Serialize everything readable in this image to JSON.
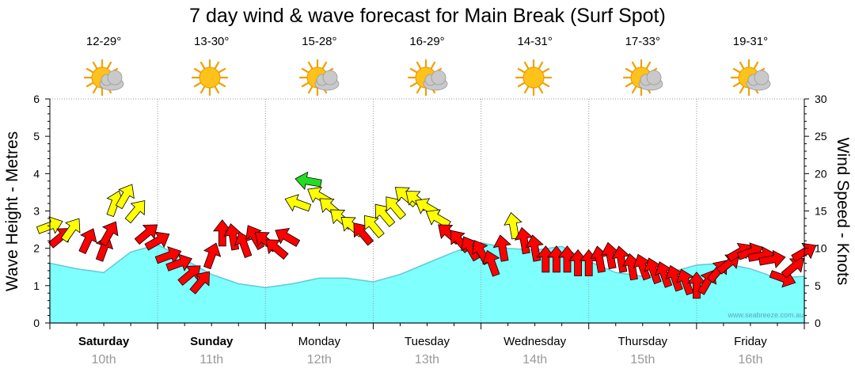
{
  "title": "7 day wind & wave forecast for Main Break (Surf Spot)",
  "credit": "www.seabreeze.com.au",
  "days": [
    {
      "name": "Saturday",
      "date": "10th",
      "temp": "12-29°",
      "icon": "partly-cloudy-icon",
      "bold": true
    },
    {
      "name": "Sunday",
      "date": "11th",
      "temp": "13-30°",
      "icon": "sunny-icon",
      "bold": true
    },
    {
      "name": "Monday",
      "date": "12th",
      "temp": "15-28°",
      "icon": "partly-cloudy-icon",
      "bold": false
    },
    {
      "name": "Tuesday",
      "date": "13th",
      "temp": "16-29°",
      "icon": "partly-cloudy-icon",
      "bold": false
    },
    {
      "name": "Wednesday",
      "date": "14th",
      "temp": "14-31°",
      "icon": "sunny-icon",
      "bold": false
    },
    {
      "name": "Thursday",
      "date": "15th",
      "temp": "17-33°",
      "icon": "partly-cloudy-icon",
      "bold": false
    },
    {
      "name": "Friday",
      "date": "16th",
      "temp": "19-31°",
      "icon": "partly-cloudy-icon",
      "bold": false
    }
  ],
  "colors": {
    "wave_fill": "#80ffff",
    "wave_stroke": "#5fc9d6",
    "wind_strong": "#ff0000",
    "wind_moderate": "#ffff00",
    "wind_peak": "#22dd22",
    "arrow_outline": "#000000",
    "grid": "#999999"
  },
  "chart_data": {
    "type": "area",
    "title": "7 day wind & wave forecast for Main Break (Surf Spot)",
    "ylabel_left": "Wave Height - Metres",
    "ylabel_right": "Wind Speed - Knots",
    "ylim_left": [
      0,
      6
    ],
    "ylim_right": [
      0,
      30
    ],
    "yticks_left": [
      "0",
      "1",
      "2",
      "3",
      "4",
      "5",
      "6"
    ],
    "yticks_right": [
      "0",
      "5",
      "10",
      "15",
      "20",
      "25",
      "30"
    ],
    "grid": "dotted-vertical",
    "x_days": [
      "Saturday 10th",
      "Sunday 11th",
      "Monday 12th",
      "Tuesday 13th",
      "Wednesday 14th",
      "Thursday 15th",
      "Friday 16th"
    ],
    "wave_series": {
      "name": "Wave Height",
      "x": [
        0,
        0.25,
        0.5,
        0.75,
        1,
        1.25,
        1.5,
        1.75,
        2,
        2.25,
        2.5,
        2.75,
        3,
        3.25,
        3.5,
        3.75,
        4,
        4.25,
        4.5,
        4.75,
        5,
        5.25,
        5.5,
        5.75,
        6,
        6.25,
        6.5,
        6.75,
        7
      ],
      "y": [
        1.6,
        1.45,
        1.35,
        1.9,
        2.1,
        1.7,
        1.3,
        1.05,
        0.95,
        1.05,
        1.2,
        1.2,
        1.1,
        1.3,
        1.6,
        1.9,
        2.15,
        2.0,
        1.95,
        2.05,
        1.65,
        1.35,
        1.25,
        1.35,
        1.55,
        1.6,
        1.45,
        1.2,
        1.25
      ]
    },
    "wind_series": {
      "name": "Wind Speed",
      "x": [
        0,
        0.1,
        0.2,
        0.35,
        0.5,
        0.55,
        0.6,
        0.7,
        0.8,
        0.9,
        1,
        1.1,
        1.2,
        1.3,
        1.4,
        1.5,
        1.6,
        1.7,
        1.8,
        1.9,
        2,
        2.1,
        2.2,
        2.3,
        2.4,
        2.5,
        2.6,
        2.7,
        2.8,
        2.9,
        3,
        3.1,
        3.2,
        3.3,
        3.4,
        3.5,
        3.6,
        3.7,
        3.8,
        3.9,
        4,
        4.1,
        4.2,
        4.3,
        4.4,
        4.5,
        4.6,
        4.7,
        4.8,
        4.9,
        5,
        5.1,
        5.2,
        5.3,
        5.4,
        5.5,
        5.6,
        5.7,
        5.8,
        5.9,
        6,
        6.1,
        6.2,
        6.3,
        6.4,
        6.5,
        6.6,
        6.7,
        6.8,
        6.9,
        7
      ],
      "y": [
        13,
        11.5,
        12.5,
        11,
        10,
        12,
        16,
        17,
        15,
        12,
        11,
        9,
        8,
        6.5,
        5.5,
        9,
        12,
        11.5,
        10.5,
        11.5,
        11,
        10,
        11.5,
        16,
        19,
        17,
        15.5,
        14,
        13,
        12,
        13,
        14.5,
        15.5,
        17,
        16.5,
        15.5,
        14,
        12,
        11,
        10,
        9.5,
        8,
        10,
        13,
        11,
        10,
        8.5,
        8.5,
        8.5,
        8,
        8,
        8.5,
        9,
        8.5,
        7.5,
        7.5,
        7,
        6.5,
        6,
        5.5,
        5,
        5.5,
        7,
        8,
        9.5,
        9.5,
        9,
        8.5,
        6,
        7.5,
        9.5
      ],
      "dir_deg": [
        -20,
        -40,
        -55,
        -65,
        -70,
        -60,
        -70,
        -60,
        -50,
        -40,
        -30,
        -20,
        -20,
        -40,
        -50,
        -70,
        -90,
        -100,
        -110,
        -120,
        -140,
        -140,
        -150,
        -160,
        -170,
        -150,
        -140,
        -140,
        -140,
        -130,
        -130,
        -130,
        -130,
        -140,
        -140,
        -150,
        -150,
        -140,
        -130,
        -120,
        -120,
        -110,
        -100,
        -100,
        -100,
        -100,
        -90,
        -90,
        -90,
        -90,
        -90,
        -100,
        -100,
        -100,
        -100,
        -110,
        -110,
        -110,
        -110,
        -110,
        -90,
        -60,
        -50,
        -40,
        -30,
        -20,
        -10,
        -10,
        20,
        -40,
        -30
      ]
    }
  }
}
